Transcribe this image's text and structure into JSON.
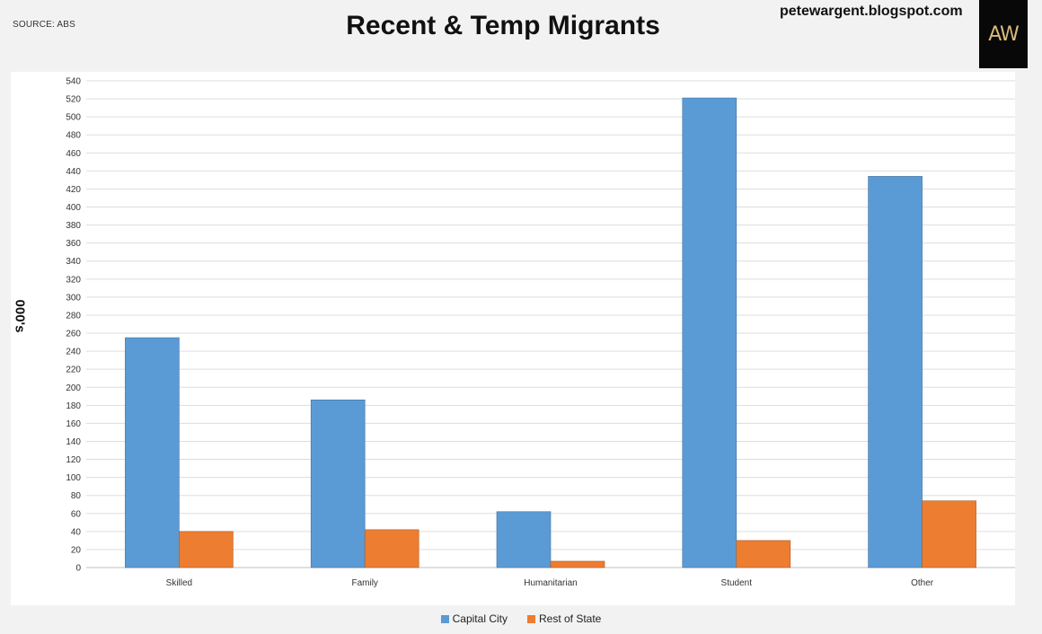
{
  "header": {
    "source": "SOURCE: ABS",
    "title": "Recent & Temp Migrants",
    "blog": "petewargent.blogspot.com",
    "logo_text": "AW"
  },
  "colors": {
    "capital_city": "#5b9bd5",
    "rest_of_state": "#ed7d31",
    "grid": "#dddddd"
  },
  "chart_data": {
    "type": "bar",
    "title": "Recent & Temp Migrants",
    "xlabel": "",
    "ylabel": "000's",
    "ylim": [
      0,
      540
    ],
    "yticks": [
      0,
      20,
      40,
      60,
      80,
      100,
      120,
      140,
      160,
      180,
      200,
      220,
      240,
      260,
      280,
      300,
      320,
      340,
      360,
      380,
      400,
      420,
      440,
      460,
      480,
      500,
      520,
      540
    ],
    "grid": true,
    "legend_position": "bottom",
    "categories": [
      "Skilled",
      "Family",
      "Humanitarian",
      "Student",
      "Other"
    ],
    "series": [
      {
        "name": "Capital City",
        "values": [
          255,
          186,
          62,
          521,
          434
        ]
      },
      {
        "name": "Rest of State",
        "values": [
          40,
          42,
          7,
          30,
          74
        ]
      }
    ]
  }
}
